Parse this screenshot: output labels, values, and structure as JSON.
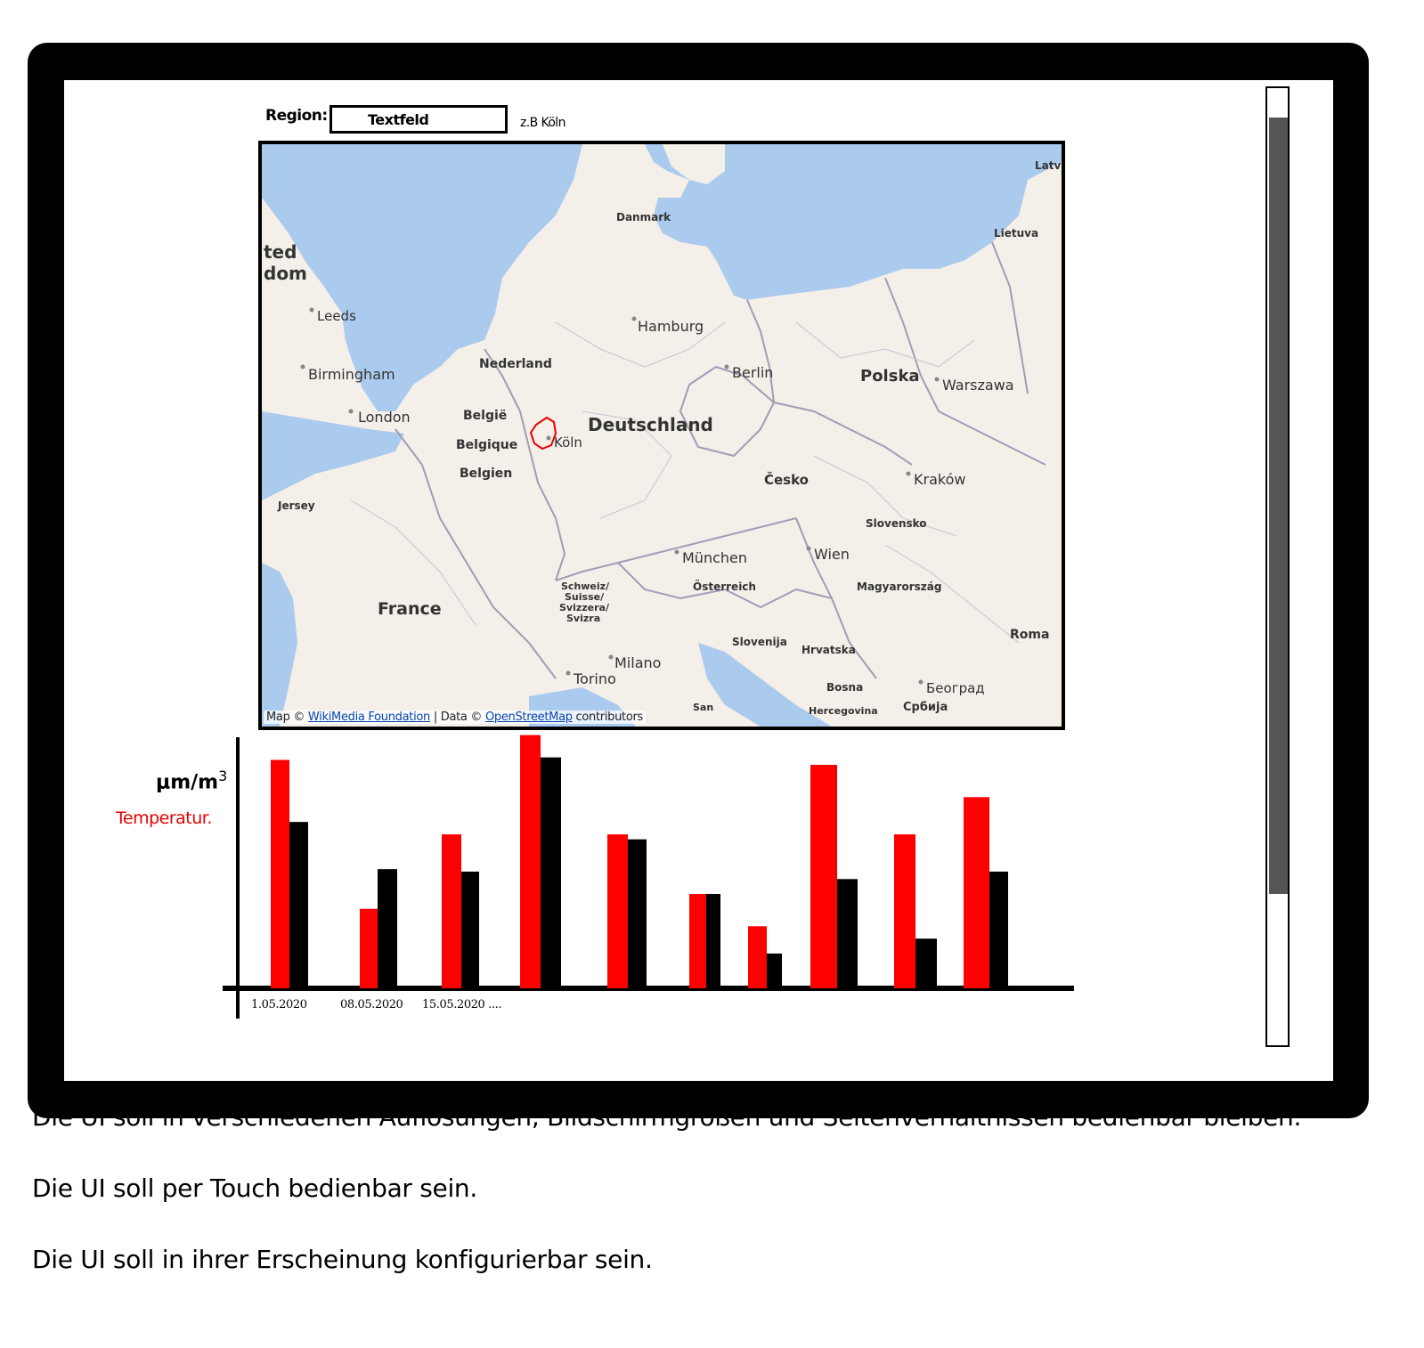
{
  "region": {
    "label": "Region:",
    "input_value": "Textfeld",
    "hint": "z.B Köln"
  },
  "map": {
    "places": [
      {
        "name": "Danmark",
        "bold": true
      },
      {
        "name": "Lietuva",
        "bold": true
      },
      {
        "name": "Latv",
        "bold": true
      },
      {
        "name": "ted",
        "bold": true
      },
      {
        "name": "dom",
        "bold": true
      },
      {
        "name": "Leeds",
        "bold": false
      },
      {
        "name": "Hamburg",
        "bold": false
      },
      {
        "name": "Birmingham",
        "bold": false
      },
      {
        "name": "Nederland",
        "bold": true
      },
      {
        "name": "Berlin",
        "bold": false
      },
      {
        "name": "Polska",
        "bold": true
      },
      {
        "name": "Warszawa",
        "bold": false
      },
      {
        "name": "London",
        "bold": false
      },
      {
        "name": "België",
        "bold": true
      },
      {
        "name": "Deutschland",
        "bold": true
      },
      {
        "name": "Belgique",
        "bold": true
      },
      {
        "name": "Köln",
        "bold": false
      },
      {
        "name": "Belgien",
        "bold": true
      },
      {
        "name": "Česko",
        "bold": true
      },
      {
        "name": "Kraków",
        "bold": false
      },
      {
        "name": "Jersey",
        "bold": true
      },
      {
        "name": "Slovensko",
        "bold": true
      },
      {
        "name": "München",
        "bold": false
      },
      {
        "name": "Wien",
        "bold": false
      },
      {
        "name": "Schweiz/",
        "bold": true
      },
      {
        "name": "Suisse/",
        "bold": true
      },
      {
        "name": "Svizzera/",
        "bold": true
      },
      {
        "name": "Svizra",
        "bold": true
      },
      {
        "name": "Österreich",
        "bold": true
      },
      {
        "name": "Magyarország",
        "bold": true
      },
      {
        "name": "France",
        "bold": true
      },
      {
        "name": "Roma",
        "bold": true
      },
      {
        "name": "Slovenija",
        "bold": true
      },
      {
        "name": "Hrvatska",
        "bold": true
      },
      {
        "name": "Milano",
        "bold": false
      },
      {
        "name": "Torino",
        "bold": false
      },
      {
        "name": "Bosna",
        "bold": true
      },
      {
        "name": "Београд",
        "bold": false
      },
      {
        "name": "Herсegovina",
        "bold": true
      },
      {
        "name": "Србија",
        "bold": true
      },
      {
        "name": "San",
        "bold": true
      }
    ],
    "attribution_prefix": "Map © ",
    "attribution_link1": "WikiMedia Foundation",
    "attribution_mid": " | Data © ",
    "attribution_link2": "OpenStreetMap",
    "attribution_suffix": " contributors",
    "colors": {
      "land": "#f4efe9",
      "water": "#aacbee",
      "border": "#a49bb5",
      "highlight": "#e80000"
    }
  },
  "chart_data": {
    "type": "bar",
    "y_unit": "μm/m",
    "y_unit_sup": "3",
    "categories": [
      "1.05.2020",
      "08.05.2020",
      "15.05.2020 ....",
      "",
      "",
      "",
      "",
      "",
      "",
      ""
    ],
    "series": [
      {
        "name": "Temperatur.",
        "color": "#ff0000",
        "values": [
          92,
          32,
          62,
          102,
          62,
          38,
          25,
          90,
          62,
          77
        ]
      },
      {
        "name": "",
        "color": "#000000",
        "values": [
          67,
          48,
          47,
          93,
          60,
          38,
          14,
          44,
          20,
          47
        ]
      }
    ],
    "ylim": [
      0,
      104
    ]
  },
  "scrollbar": {
    "position_fraction": 0.0,
    "visible_fraction": 0.81
  },
  "requirements": [
    "Die UI soll in verschiedenen Auflösungen, Bildschirmgrößen und Seitenverhältnissen bedienbar bleiben.",
    "Die UI soll per Touch bedienbar sein.",
    "Die UI soll in ihrer Erscheinung konfigurierbar sein."
  ]
}
